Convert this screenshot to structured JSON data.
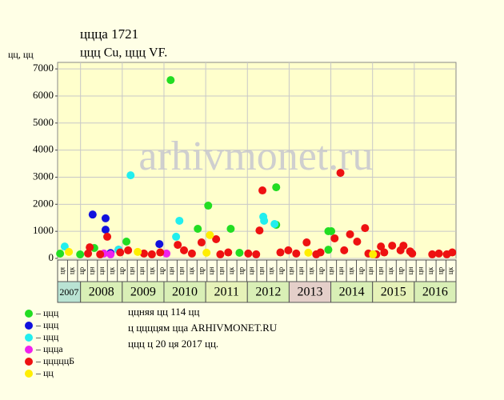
{
  "chart_data": {
    "type": "scatter",
    "title": "ццца 1721",
    "subtitle": "ццц Cu, ццц VF.",
    "y_label": "цц, цц",
    "watermark": "arhivmonet.ru",
    "xlim": [
      2007.45,
      2017.0
    ],
    "ylim": [
      0,
      7240
    ],
    "yticks": [
      0,
      1000,
      2000,
      3000,
      4000,
      5000,
      6000,
      7000
    ],
    "grid": true,
    "years": [
      2007,
      2008,
      2009,
      2010,
      2011,
      2012,
      2013,
      2014,
      2015,
      2016
    ],
    "year_colors": [
      "#b9e3d3",
      "#d9efb6",
      "#d9efb6",
      "#d9efb6",
      "#e6f2b8",
      "#d9efb6",
      "#e4cfc9",
      "#d9efb6",
      "#e6f2b8",
      "#d9efb6"
    ],
    "period_labels": [
      "ця",
      "цк",
      "цр",
      "цн",
      "цн",
      "цк",
      "цр",
      "цн",
      "цн",
      "цк",
      "цр",
      "цн",
      "цн",
      "цк",
      "цр",
      "цн",
      "цн",
      "цк",
      "цр",
      "цн",
      "цн",
      "цк",
      "цр",
      "цн",
      "цн",
      "цк",
      "цр",
      "цн",
      "цн",
      "цк",
      "цр",
      "цн",
      "цн",
      "цк",
      "цр",
      "цн",
      "цн",
      "цк",
      "цр",
      "цк"
    ],
    "series": [
      {
        "name": "– ццц",
        "color": "#22dd22",
        "x": [
          2007.51,
          2007.99,
          2008.33,
          2009.1,
          2010.16,
          2010.81,
          2011.06,
          2011.6,
          2011.81,
          2012.69,
          2012.69,
          2013.94,
          2014.01,
          2013.94
        ],
        "values": [
          177,
          148,
          384,
          620,
          6586,
          1093,
          1949,
          1093,
          207,
          2628,
          1240,
          1004,
          1004,
          320
        ]
      },
      {
        "name": "– ццц",
        "color": "#1111dd",
        "x": [
          2008.29,
          2008.6,
          2008.6,
          2008.91,
          2009.89,
          2008.72
        ],
        "values": [
          1620,
          1480,
          1060,
          320,
          530,
          200
        ]
      },
      {
        "name": "– ццц",
        "color": "#22eeee",
        "x": [
          2007.62,
          2009.2,
          2010.29,
          2010.37,
          2012.38,
          2012.4,
          2012.65,
          2008.91
        ],
        "values": [
          440,
          3070,
          800,
          1390,
          1540,
          1390,
          1270,
          320
        ]
      },
      {
        "name": "– ццца",
        "color": "#ee22ee",
        "x": [
          2008.56,
          2008.72,
          2010.06
        ],
        "values": [
          180,
          150,
          180
        ]
      },
      {
        "name": "– цццццБ",
        "color": "#ee1111",
        "x": [
          2008.22,
          2008.64,
          2010.33,
          2010.9,
          2011.25,
          2012.29,
          2012.36,
          2013.42,
          2014.23,
          2014.09,
          2014.46,
          2014.63,
          2014.82,
          2015.2,
          2015.47,
          2015.74,
          2015.9,
          2008.18,
          2008.47,
          2008.95,
          2009.14,
          2009.52,
          2009.71,
          2009.91,
          2010.48,
          2010.67,
          2011.35,
          2011.54,
          2012.02,
          2012.21,
          2012.79,
          2012.98,
          2013.17,
          2013.65,
          2013.75,
          2014.32,
          2014.9,
          2015.09,
          2015.28,
          2015.67,
          2015.95,
          2016.43,
          2016.59,
          2016.78,
          2016.91
        ],
        "values": [
          410,
          800,
          500,
          590,
          710,
          1030,
          2510,
          590,
          3160,
          740,
          890,
          620,
          1120,
          440,
          470,
          470,
          260,
          180,
          150,
          220,
          300,
          180,
          150,
          220,
          300,
          180,
          150,
          220,
          180,
          150,
          220,
          300,
          180,
          150,
          220,
          300,
          180,
          150,
          220,
          300,
          180,
          150,
          180,
          150,
          220
        ]
      },
      {
        "name": "– цц",
        "color": "#ffee00",
        "x": [
          2007.72,
          2009.37,
          2011.02,
          2011.1,
          2013.46,
          2015.01
        ],
        "values": [
          240,
          240,
          210,
          860,
          210,
          150
        ]
      }
    ],
    "notes": [
      "ццняя цц 114 цц",
      "ц ццццям цца ARHIVMONET.RU",
      "ццц ц 20 ця 2017 цц."
    ]
  }
}
